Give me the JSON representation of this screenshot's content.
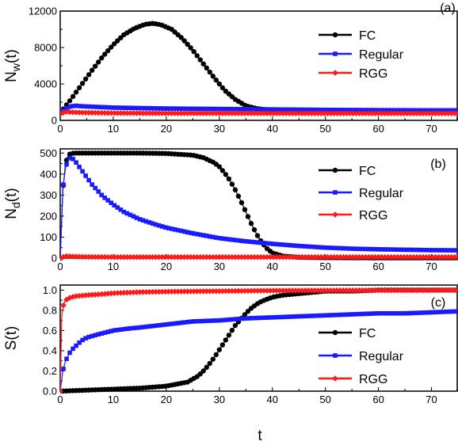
{
  "xlabel": "t",
  "colors": {
    "FC": "#000000",
    "Regular": "#1a1aff",
    "RGG": "#ff1a1a"
  },
  "chart_data": [
    {
      "type": "line",
      "panel_label": "(a)",
      "ylabel": {
        "main": "N",
        "sub": "w",
        "arg": "(t)"
      },
      "xlim": [
        0,
        75
      ],
      "ylim": [
        0,
        12000
      ],
      "xticks": [
        0,
        10,
        20,
        30,
        40,
        50,
        60,
        70
      ],
      "yticks": [
        0,
        4000,
        8000,
        12000
      ],
      "legend_position": "top-right",
      "series": [
        {
          "name": "FC",
          "marker": "circle",
          "x": [
            0,
            2,
            4,
            6,
            8,
            10,
            12,
            14,
            16,
            17.5,
            19,
            21,
            23,
            25,
            27,
            29,
            31,
            33,
            35,
            37,
            39,
            41,
            45,
            50,
            60,
            70,
            75
          ],
          "y": [
            800,
            2300,
            3900,
            5500,
            7000,
            8300,
            9400,
            10100,
            10550,
            10650,
            10500,
            10000,
            9000,
            7700,
            6200,
            4700,
            3300,
            2300,
            1600,
            1300,
            1150,
            1080,
            1050,
            1040,
            1030,
            1020,
            1020
          ]
        },
        {
          "name": "Regular",
          "marker": "square",
          "x": [
            0,
            1,
            2,
            3,
            4,
            6,
            8,
            10,
            15,
            20,
            30,
            40,
            50,
            60,
            70,
            75
          ],
          "y": [
            800,
            1300,
            1550,
            1600,
            1550,
            1500,
            1450,
            1400,
            1350,
            1300,
            1250,
            1200,
            1150,
            1120,
            1100,
            1100
          ]
        },
        {
          "name": "RGG",
          "marker": "diamond",
          "x": [
            0,
            1,
            2,
            4,
            10,
            20,
            40,
            60,
            75
          ],
          "y": [
            700,
            950,
            900,
            850,
            800,
            780,
            770,
            760,
            760
          ]
        }
      ]
    },
    {
      "type": "line",
      "panel_label": "(b)",
      "ylabel": {
        "main": "N",
        "sub": "d",
        "arg": "(t)"
      },
      "xlim": [
        0,
        75
      ],
      "ylim": [
        0,
        520
      ],
      "xticks": [
        0,
        10,
        20,
        30,
        40,
        50,
        60,
        70
      ],
      "yticks": [
        0,
        100,
        200,
        300,
        400,
        500
      ],
      "legend_position": "right",
      "series": [
        {
          "name": "FC",
          "marker": "circle",
          "x": [
            0,
            0.5,
            1,
            1.5,
            2,
            3,
            5,
            10,
            15,
            20,
            25,
            27,
            29,
            30,
            31,
            32,
            33,
            34,
            35,
            36,
            37,
            38,
            39,
            40,
            42,
            45,
            50,
            60,
            75
          ],
          "y": [
            0,
            320,
            450,
            490,
            498,
            500,
            500,
            500,
            500,
            498,
            490,
            478,
            455,
            435,
            405,
            370,
            325,
            275,
            220,
            165,
            115,
            75,
            45,
            25,
            10,
            4,
            2,
            1,
            1
          ]
        },
        {
          "name": "Regular",
          "marker": "square",
          "x": [
            0,
            0.5,
            1,
            1.5,
            2,
            2.5,
            3,
            4,
            5,
            6,
            8,
            10,
            12,
            15,
            18,
            20,
            25,
            30,
            35,
            40,
            45,
            50,
            55,
            60,
            65,
            70,
            75
          ],
          "y": [
            0,
            330,
            430,
            470,
            480,
            470,
            455,
            420,
            385,
            350,
            295,
            255,
            220,
            185,
            160,
            145,
            118,
            95,
            80,
            68,
            58,
            50,
            45,
            42,
            40,
            38,
            37
          ]
        },
        {
          "name": "RGG",
          "marker": "diamond",
          "x": [
            0,
            1,
            2,
            5,
            10,
            20,
            40,
            60,
            75
          ],
          "y": [
            0,
            10,
            8,
            6,
            5,
            5,
            5,
            5,
            5
          ]
        }
      ]
    },
    {
      "type": "line",
      "panel_label": "(c)",
      "ylabel": {
        "main": "S",
        "sub": "",
        "arg": "(t)"
      },
      "xlim": [
        0,
        75
      ],
      "ylim": [
        0,
        1.05
      ],
      "xticks": [
        0,
        10,
        20,
        30,
        40,
        50,
        60,
        70
      ],
      "yticks": [
        0.0,
        0.2,
        0.4,
        0.6,
        0.8,
        1.0
      ],
      "legend_position": "right",
      "series": [
        {
          "name": "FC",
          "marker": "circle",
          "x": [
            0,
            5,
            10,
            15,
            20,
            22,
            24,
            25,
            26,
            27,
            28,
            29,
            30,
            31,
            32,
            33,
            34,
            35,
            36,
            37,
            38,
            39,
            40,
            42,
            44,
            46,
            48,
            50,
            55,
            60,
            65,
            70,
            75
          ],
          "y": [
            0.0,
            0.01,
            0.02,
            0.03,
            0.05,
            0.07,
            0.09,
            0.12,
            0.15,
            0.2,
            0.26,
            0.33,
            0.41,
            0.49,
            0.57,
            0.65,
            0.71,
            0.77,
            0.82,
            0.86,
            0.89,
            0.91,
            0.93,
            0.95,
            0.96,
            0.97,
            0.98,
            0.99,
            0.99,
            1.0,
            1.0,
            1.0,
            1.0
          ]
        },
        {
          "name": "Regular",
          "marker": "square",
          "x": [
            0,
            0.5,
            1,
            2,
            3,
            4,
            5,
            7,
            10,
            13,
            15,
            20,
            25,
            30,
            35,
            40,
            45,
            50,
            55,
            60,
            65,
            70,
            75
          ],
          "y": [
            0.0,
            0.2,
            0.3,
            0.4,
            0.45,
            0.5,
            0.53,
            0.56,
            0.6,
            0.62,
            0.63,
            0.66,
            0.69,
            0.7,
            0.72,
            0.73,
            0.74,
            0.75,
            0.76,
            0.77,
            0.77,
            0.78,
            0.79
          ]
        },
        {
          "name": "RGG",
          "marker": "diamond",
          "x": [
            0,
            0.3,
            0.6,
            1,
            2,
            3,
            5,
            8,
            10,
            15,
            20,
            30,
            40,
            50,
            60,
            70,
            75
          ],
          "y": [
            0.0,
            0.75,
            0.85,
            0.9,
            0.93,
            0.94,
            0.95,
            0.96,
            0.97,
            0.98,
            0.985,
            0.99,
            0.995,
            0.997,
            0.998,
            0.999,
            1.0
          ]
        }
      ]
    }
  ]
}
